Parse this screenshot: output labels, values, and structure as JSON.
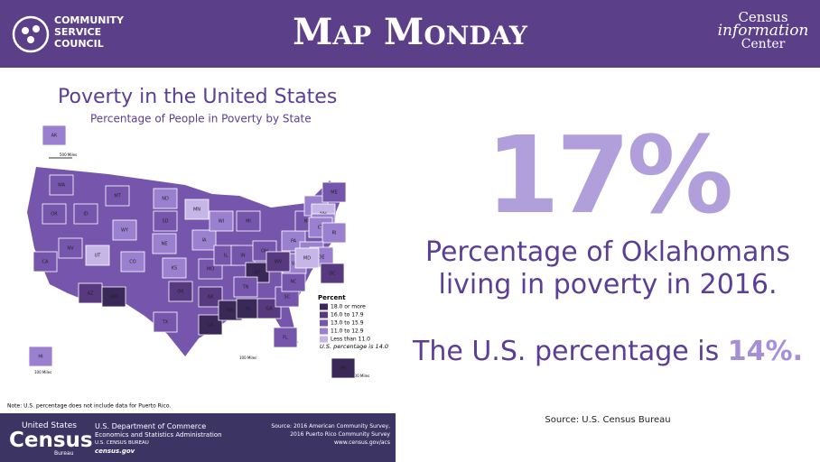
{
  "header": {
    "org": "COMMUNITY SERVICE COUNCIL",
    "title": "Map Monday",
    "partner_top": "Census",
    "partner_mid": "information",
    "partner_bottom": "Center"
  },
  "map": {
    "title": "Poverty in the United States",
    "subtitle": "Percentage of People in Poverty by State",
    "legend_title": "Percent",
    "legend": [
      {
        "label": "18.0 or more",
        "color": "#3a2858"
      },
      {
        "label": "16.0 to 17.9",
        "color": "#56397f"
      },
      {
        "label": "13.0 to 15.9",
        "color": "#7656ac"
      },
      {
        "label": "11.0 to 12.9",
        "color": "#9a80cf"
      },
      {
        "label": "Less than 11.0",
        "color": "#c6b6e8"
      }
    ],
    "us_note": "U.S. percentage is 14.0",
    "scales": [
      "500 Miles",
      "100 Miles",
      "100 Miles",
      "100 Miles"
    ],
    "states": [
      {
        "label": "AK",
        "color": "#9a80cf"
      },
      {
        "label": "WA",
        "color": "#7656ac"
      },
      {
        "label": "OR",
        "color": "#7656ac"
      },
      {
        "label": "CA",
        "color": "#7656ac"
      },
      {
        "label": "NV",
        "color": "#7656ac"
      },
      {
        "label": "ID",
        "color": "#7656ac"
      },
      {
        "label": "MT",
        "color": "#7656ac"
      },
      {
        "label": "WY",
        "color": "#9a80cf"
      },
      {
        "label": "UT",
        "color": "#c6b6e8"
      },
      {
        "label": "CO",
        "color": "#9a80cf"
      },
      {
        "label": "AZ",
        "color": "#56397f"
      },
      {
        "label": "NM",
        "color": "#3a2858"
      },
      {
        "label": "ND",
        "color": "#9a80cf"
      },
      {
        "label": "SD",
        "color": "#7656ac"
      },
      {
        "label": "NE",
        "color": "#9a80cf"
      },
      {
        "label": "KS",
        "color": "#9a80cf"
      },
      {
        "label": "OK",
        "color": "#56397f"
      },
      {
        "label": "TX",
        "color": "#7656ac"
      },
      {
        "label": "MN",
        "color": "#c6b6e8"
      },
      {
        "label": "IA",
        "color": "#9a80cf"
      },
      {
        "label": "MO",
        "color": "#7656ac"
      },
      {
        "label": "AR",
        "color": "#56397f"
      },
      {
        "label": "LA",
        "color": "#3a2858"
      },
      {
        "label": "WI",
        "color": "#9a80cf"
      },
      {
        "label": "IL",
        "color": "#7656ac"
      },
      {
        "label": "MI",
        "color": "#7656ac"
      },
      {
        "label": "IN",
        "color": "#7656ac"
      },
      {
        "label": "OH",
        "color": "#7656ac"
      },
      {
        "label": "KY",
        "color": "#3a2858"
      },
      {
        "label": "TN",
        "color": "#7656ac"
      },
      {
        "label": "MS",
        "color": "#3a2858"
      },
      {
        "label": "AL",
        "color": "#3a2858"
      },
      {
        "label": "GA",
        "color": "#56397f"
      },
      {
        "label": "FL",
        "color": "#7656ac"
      },
      {
        "label": "SC",
        "color": "#7656ac"
      },
      {
        "label": "NC",
        "color": "#7656ac"
      },
      {
        "label": "VA",
        "color": "#9a80cf"
      },
      {
        "label": "WV",
        "color": "#56397f"
      },
      {
        "label": "PA",
        "color": "#9a80cf"
      },
      {
        "label": "NY",
        "color": "#7656ac"
      },
      {
        "label": "VT",
        "color": "#9a80cf"
      },
      {
        "label": "NH",
        "color": "#c6b6e8"
      },
      {
        "label": "MA",
        "color": "#9a80cf"
      },
      {
        "label": "ME",
        "color": "#7656ac"
      },
      {
        "label": "CT",
        "color": "#9a80cf"
      },
      {
        "label": "RI",
        "color": "#9a80cf"
      },
      {
        "label": "NJ",
        "color": "#9a80cf"
      },
      {
        "label": "DE",
        "color": "#9a80cf"
      },
      {
        "label": "MD",
        "color": "#c6b6e8"
      },
      {
        "label": "DC",
        "color": "#56397f"
      },
      {
        "label": "HI",
        "color": "#9a80cf"
      },
      {
        "label": "PR",
        "color": "#3a2858"
      }
    ],
    "note": "Note: U.S. percentage does not include data for Puerto Rico."
  },
  "footer": {
    "census_top": "United States",
    "census_word": "Census",
    "census_bottom": "Bureau",
    "dept": "U.S. Department of Commerce",
    "esa": "Economics and Statistics Administration",
    "bureau": "U.S. CENSUS BUREAU",
    "site": "census.gov",
    "source1": "Source: 2016 American Community Survey,",
    "source2": "2016 Puerto Rico Community Survey",
    "source3": "www.census.gov/acs"
  },
  "stat": {
    "value": "17%",
    "desc_line1": "Percentage of Oklahomans",
    "desc_line2": "living in poverty in 2016.",
    "us_text": "The U.S. percentage is ",
    "us_value": "14%.",
    "source": "Source: U.S. Census Bureau"
  }
}
